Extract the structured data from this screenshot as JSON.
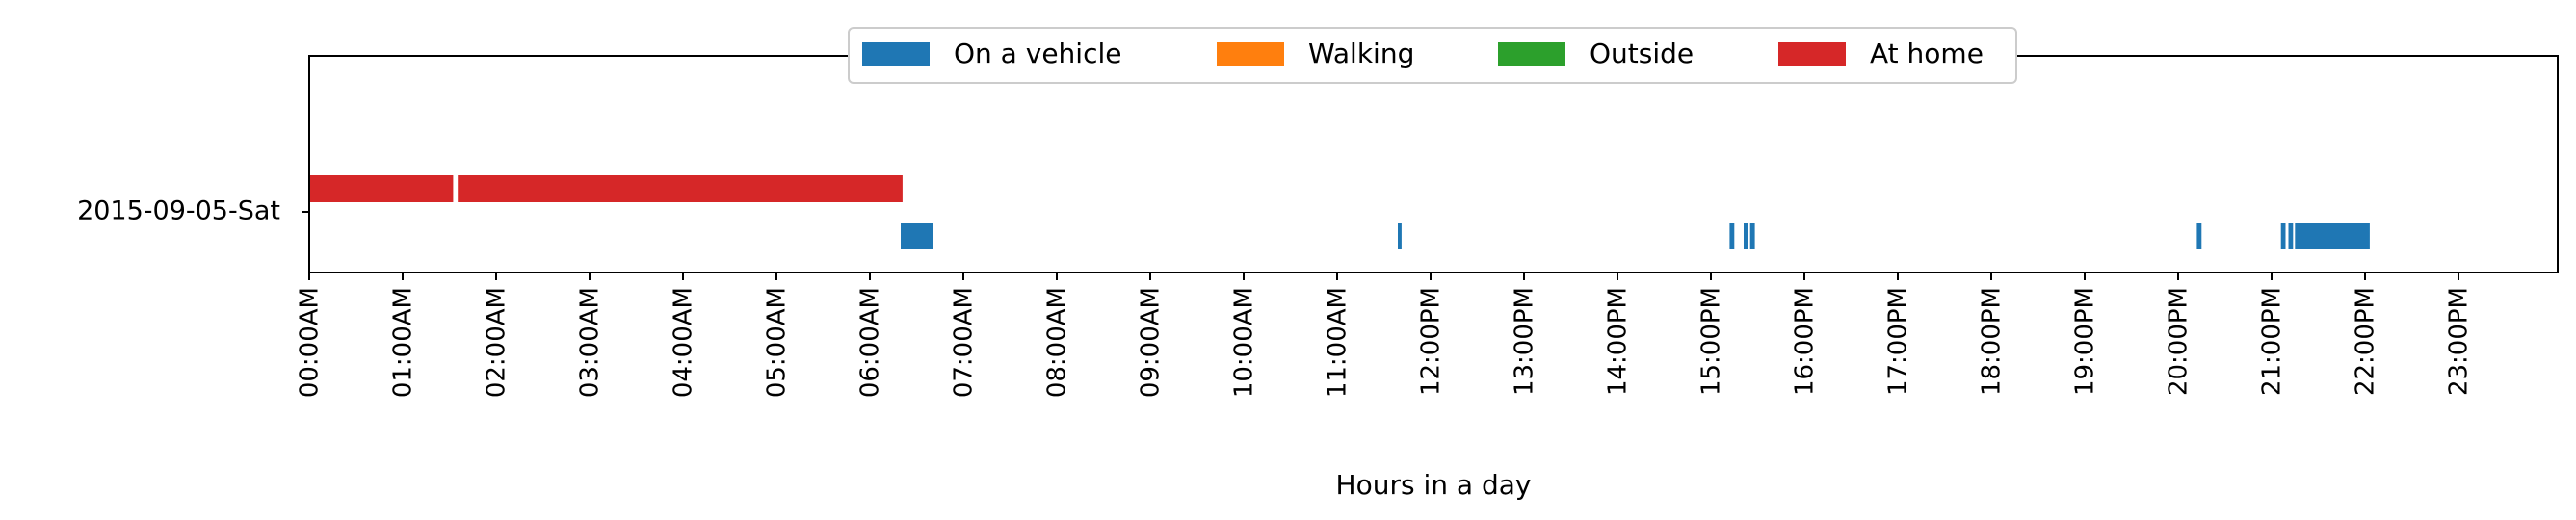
{
  "chart_data": {
    "type": "broken_barh",
    "ylabel_category": "2015-09-05-Sat",
    "xlabel": "Hours in a day",
    "xlim": [
      0,
      24
    ],
    "x_ticks": [
      {
        "value": 0,
        "label": "00:00AM"
      },
      {
        "value": 1,
        "label": "01:00AM"
      },
      {
        "value": 2,
        "label": "02:00AM"
      },
      {
        "value": 3,
        "label": "03:00AM"
      },
      {
        "value": 4,
        "label": "04:00AM"
      },
      {
        "value": 5,
        "label": "05:00AM"
      },
      {
        "value": 6,
        "label": "06:00AM"
      },
      {
        "value": 7,
        "label": "07:00AM"
      },
      {
        "value": 8,
        "label": "08:00AM"
      },
      {
        "value": 9,
        "label": "09:00AM"
      },
      {
        "value": 10,
        "label": "10:00AM"
      },
      {
        "value": 11,
        "label": "11:00AM"
      },
      {
        "value": 12,
        "label": "12:00PM"
      },
      {
        "value": 13,
        "label": "13:00PM"
      },
      {
        "value": 14,
        "label": "14:00PM"
      },
      {
        "value": 15,
        "label": "15:00PM"
      },
      {
        "value": 16,
        "label": "16:00PM"
      },
      {
        "value": 17,
        "label": "17:00PM"
      },
      {
        "value": 18,
        "label": "18:00PM"
      },
      {
        "value": 19,
        "label": "19:00PM"
      },
      {
        "value": 20,
        "label": "20:00PM"
      },
      {
        "value": 21,
        "label": "21:00PM"
      },
      {
        "value": 22,
        "label": "22:00PM"
      },
      {
        "value": 23,
        "label": "23:00PM"
      }
    ],
    "legend_position": "upper-center",
    "series": [
      {
        "name": "On a vehicle",
        "color": "#1f77b4",
        "row": "lower",
        "intervals": [
          [
            6.33,
            6.68
          ],
          [
            11.65,
            11.69
          ],
          [
            15.2,
            15.25
          ],
          [
            15.35,
            15.4
          ],
          [
            15.42,
            15.47
          ],
          [
            20.2,
            20.25
          ],
          [
            21.1,
            21.15
          ],
          [
            21.18,
            21.23
          ],
          [
            21.25,
            22.05
          ]
        ]
      },
      {
        "name": "Walking",
        "color": "#ff7f0e",
        "row": "lower",
        "intervals": []
      },
      {
        "name": "Outside",
        "color": "#2ca02c",
        "row": "lower",
        "intervals": []
      },
      {
        "name": "At home",
        "color": "#d62728",
        "row": "upper",
        "intervals": [
          [
            0,
            1.54
          ],
          [
            1.59,
            6.35
          ]
        ]
      }
    ]
  }
}
